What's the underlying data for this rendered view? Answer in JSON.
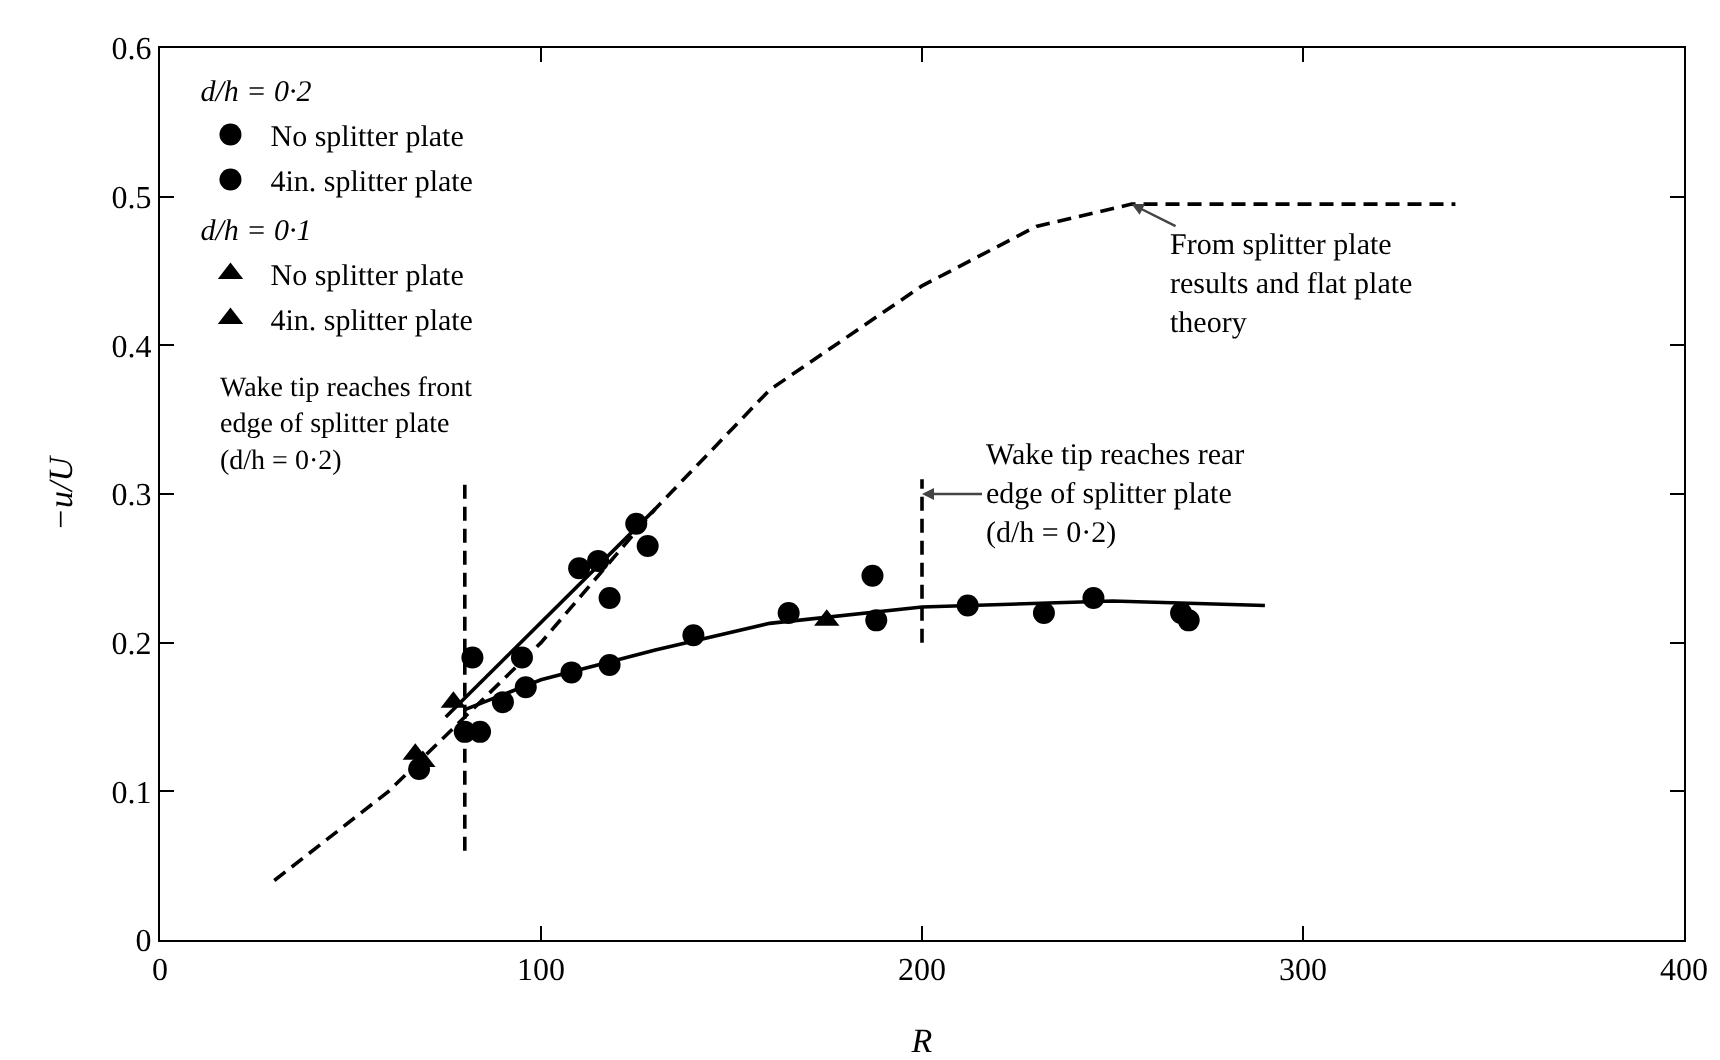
{
  "chart_data": {
    "type": "scatter",
    "xlabel": "R",
    "ylabel": "−u/U",
    "xlim": [
      0,
      400
    ],
    "xticks": [
      0,
      100,
      200,
      300,
      400
    ],
    "ylim": [
      0,
      0.6
    ],
    "yticks": [
      0,
      0.1,
      0.2,
      0.3,
      0.4,
      0.5,
      0.6
    ],
    "grid": false,
    "legend": "top left",
    "series": [
      {
        "name": "No splitter plate",
        "color": "#000000",
        "marker": "circle",
        "x": [
          82,
          95,
          110,
          115,
          118,
          125,
          128,
          187
        ],
        "values": [
          0.19,
          0.19,
          0.25,
          0.255,
          0.23,
          0.28,
          0.265,
          0.245
        ]
      },
      {
        "name": "4in. splitter plate",
        "color": "#000000",
        "marker": "circle",
        "x": [
          68,
          80,
          84,
          90,
          96,
          108,
          118,
          140,
          165,
          188,
          212,
          232,
          245,
          268,
          270
        ],
        "values": [
          0.115,
          0.14,
          0.14,
          0.16,
          0.17,
          0.18,
          0.185,
          0.205,
          0.22,
          0.215,
          0.225,
          0.22,
          0.23,
          0.22,
          0.215
        ]
      },
      {
        "name": "No splitter plate",
        "color": "#000000",
        "marker": "triangle",
        "x": [
          67,
          77,
          175
        ],
        "values": [
          0.125,
          0.16,
          0.215
        ]
      },
      {
        "name": "4in. splitter plate",
        "color": "#000000",
        "marker": "triangle",
        "x": [
          69
        ],
        "values": [
          0.12
        ]
      },
      {
        "type": "line",
        "color": "#000000",
        "marker": "none",
        "line_style": "solid",
        "x": [
          75,
          130
        ],
        "values": [
          0.15,
          0.29
        ]
      },
      {
        "type": "line",
        "color": "#000000",
        "marker": "none",
        "line_style": "solid",
        "x": [
          80,
          100,
          130,
          160,
          200,
          250,
          290
        ],
        "values": [
          0.155,
          0.175,
          0.195,
          0.213,
          0.224,
          0.228,
          0.225
        ]
      },
      {
        "type": "line",
        "color": "#000000",
        "marker": "none",
        "line_style": "dashed",
        "x": [
          30,
          60,
          80,
          100,
          130,
          160,
          200,
          230,
          255,
          340
        ],
        "values": [
          0.04,
          0.1,
          0.15,
          0.2,
          0.29,
          0.37,
          0.44,
          0.48,
          0.495,
          0.495
        ]
      },
      {
        "type": "line",
        "color": "#000000",
        "marker": "none",
        "line_style": "dashed",
        "x": [
          80,
          80
        ],
        "values": [
          0.06,
          0.31
        ]
      },
      {
        "type": "line",
        "color": "#000000",
        "marker": "none",
        "line_style": "dashed",
        "x": [
          200,
          200
        ],
        "values": [
          0.2,
          0.31
        ]
      }
    ],
    "annotations": [
      "d/h = 0·2",
      "d/h = 0·1",
      {
        "text": "From splitter plate results and flat plate theory",
        "x": 255,
        "y": 0.495
      },
      {
        "text": "Wake tip reaches front edge of splitter plate (d/h = 0·2)",
        "x": 80,
        "y": 0.31
      },
      {
        "text": "Wake tip reaches rear edge of splitter plate (d/h = 0·2)",
        "x": 200,
        "y": 0.3
      }
    ]
  }
}
